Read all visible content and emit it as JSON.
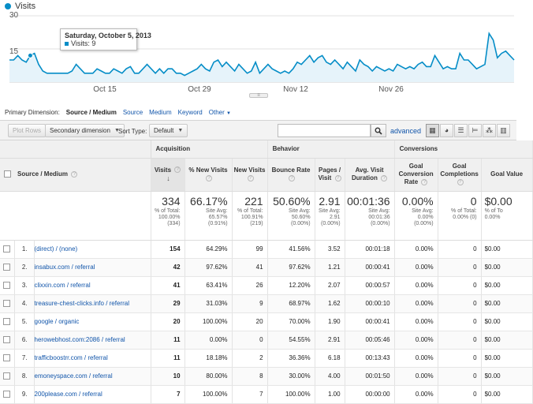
{
  "chart": {
    "legend": "Visits",
    "y_ticks": [
      "30",
      "15"
    ],
    "x_ticks": [
      "Oct 15",
      "Oct 29",
      "Nov 12",
      "Nov 26"
    ],
    "tooltip": {
      "title": "Saturday, October 5, 2013",
      "row": "Visits: 9"
    },
    "colors": {
      "line": "#058dc7",
      "fill": "#e6f3fa"
    }
  },
  "chart_data": {
    "type": "area",
    "ylim": [
      0,
      30
    ],
    "series": [
      {
        "values": [
          10,
          10,
          12,
          10,
          9,
          12,
          13,
          8,
          5,
          4,
          4,
          4,
          4,
          4,
          4,
          5,
          8,
          6,
          4,
          4,
          4,
          6,
          5,
          4,
          4,
          6,
          5,
          4,
          6,
          7,
          4,
          4,
          6,
          8,
          6,
          4,
          6,
          4,
          6,
          6,
          4,
          4,
          3,
          4,
          5,
          6,
          8,
          6,
          5,
          9,
          10,
          7,
          9,
          7,
          5,
          8,
          6,
          4,
          5,
          9,
          4,
          6,
          8,
          6,
          5,
          4,
          5,
          4,
          6,
          9,
          8,
          10,
          12,
          9,
          11,
          12,
          9,
          8,
          10,
          8,
          6,
          9,
          7,
          5,
          10,
          8,
          7,
          5,
          7,
          6,
          5,
          6,
          5,
          8,
          7,
          6,
          7,
          6,
          8,
          9,
          7,
          7,
          12,
          9,
          6,
          7,
          6,
          6,
          13,
          10,
          10,
          8,
          6,
          7,
          8,
          22,
          19,
          11,
          13,
          14,
          12,
          10
        ]
      }
    ]
  },
  "primary_dimension": {
    "label": "Primary Dimension:",
    "active": "Source / Medium",
    "options": [
      "Source",
      "Medium",
      "Keyword",
      "Other"
    ]
  },
  "toolbar": {
    "plot_rows": "Plot Rows",
    "secondary_dimension": "Secondary dimension",
    "sort_type_label": "Sort Type:",
    "sort_type_value": "Default",
    "search_value": "",
    "advanced": "advanced"
  },
  "table": {
    "groups": {
      "acquisition": "Acquisition",
      "behavior": "Behavior",
      "conversions": "Conversions"
    },
    "headers": {
      "source_medium": "Source / Medium",
      "visits": "Visits",
      "new_visits_pct": "% New Visits",
      "new_visits": "New Visits",
      "bounce_rate": "Bounce Rate",
      "pages_visit": "Pages / Visit",
      "avg_duration": "Avg. Visit Duration",
      "goal_conv_rate": "Goal Conversion Rate",
      "goal_completions": "Goal Completions",
      "goal_value": "Goal Value"
    },
    "totals": {
      "visits": {
        "value": "334",
        "sub1": "% of Total:",
        "sub2": "100.00%",
        "sub3": "(334)"
      },
      "new_visits_pct": {
        "value": "66.17%",
        "sub1": "Site Avg:",
        "sub2": "65.57%",
        "sub3": "(0.91%)"
      },
      "new_visits": {
        "value": "221",
        "sub1": "% of Total:",
        "sub2": "100.91%",
        "sub3": "(219)"
      },
      "bounce_rate": {
        "value": "50.60%",
        "sub1": "Site Avg:",
        "sub2": "50.60%",
        "sub3": "(0.00%)"
      },
      "pages_visit": {
        "value": "2.91",
        "sub1": "Site Avg:",
        "sub2": "2.91",
        "sub3": "(0.00%)"
      },
      "avg_duration": {
        "value": "00:01:36",
        "sub1": "Site Avg:",
        "sub2": "00:01:36",
        "sub3": "(0.00%)"
      },
      "goal_conv_rate": {
        "value": "0.00%",
        "sub1": "Site Avg:",
        "sub2": "0.00%",
        "sub3": "(0.00%)"
      },
      "goal_completions": {
        "value": "0",
        "sub1": "% of Total:",
        "sub2": "0.00% (0)",
        "sub3": ""
      },
      "goal_value": {
        "value": "$0.00",
        "sub1": "% of To",
        "sub2": "0.00%",
        "sub3": ""
      }
    },
    "rows": [
      {
        "idx": "1.",
        "source": "(direct) / (none)",
        "visits": "154",
        "new_pct": "64.29%",
        "new": "99",
        "bounce": "41.56%",
        "pages": "3.52",
        "duration": "00:01:18",
        "conv": "0.00%",
        "comp": "0",
        "value": "$0.00"
      },
      {
        "idx": "2.",
        "source": "insabux.com / referral",
        "visits": "42",
        "new_pct": "97.62%",
        "new": "41",
        "bounce": "97.62%",
        "pages": "1.21",
        "duration": "00:00:41",
        "conv": "0.00%",
        "comp": "0",
        "value": "$0.00"
      },
      {
        "idx": "3.",
        "source": "clixxin.com / referral",
        "visits": "41",
        "new_pct": "63.41%",
        "new": "26",
        "bounce": "12.20%",
        "pages": "2.07",
        "duration": "00:00:57",
        "conv": "0.00%",
        "comp": "0",
        "value": "$0.00"
      },
      {
        "idx": "4.",
        "source": "treasure-chest-clicks.info / referral",
        "visits": "29",
        "new_pct": "31.03%",
        "new": "9",
        "bounce": "68.97%",
        "pages": "1.62",
        "duration": "00:00:10",
        "conv": "0.00%",
        "comp": "0",
        "value": "$0.00"
      },
      {
        "idx": "5.",
        "source": "google / organic",
        "visits": "20",
        "new_pct": "100.00%",
        "new": "20",
        "bounce": "70.00%",
        "pages": "1.90",
        "duration": "00:00:41",
        "conv": "0.00%",
        "comp": "0",
        "value": "$0.00"
      },
      {
        "idx": "6.",
        "source": "herowebhost.com:2086 / referral",
        "visits": "11",
        "new_pct": "0.00%",
        "new": "0",
        "bounce": "54.55%",
        "pages": "2.91",
        "duration": "00:05:46",
        "conv": "0.00%",
        "comp": "0",
        "value": "$0.00"
      },
      {
        "idx": "7.",
        "source": "trafficboostrr.com / referral",
        "visits": "11",
        "new_pct": "18.18%",
        "new": "2",
        "bounce": "36.36%",
        "pages": "6.18",
        "duration": "00:13:43",
        "conv": "0.00%",
        "comp": "0",
        "value": "$0.00"
      },
      {
        "idx": "8.",
        "source": "emoneyspace.com / referral",
        "visits": "10",
        "new_pct": "80.00%",
        "new": "8",
        "bounce": "30.00%",
        "pages": "4.00",
        "duration": "00:01:50",
        "conv": "0.00%",
        "comp": "0",
        "value": "$0.00"
      },
      {
        "idx": "9.",
        "source": "200please.com / referral",
        "visits": "7",
        "new_pct": "100.00%",
        "new": "7",
        "bounce": "100.00%",
        "pages": "1.00",
        "duration": "00:00:00",
        "conv": "0.00%",
        "comp": "0",
        "value": "$0.00"
      }
    ]
  }
}
